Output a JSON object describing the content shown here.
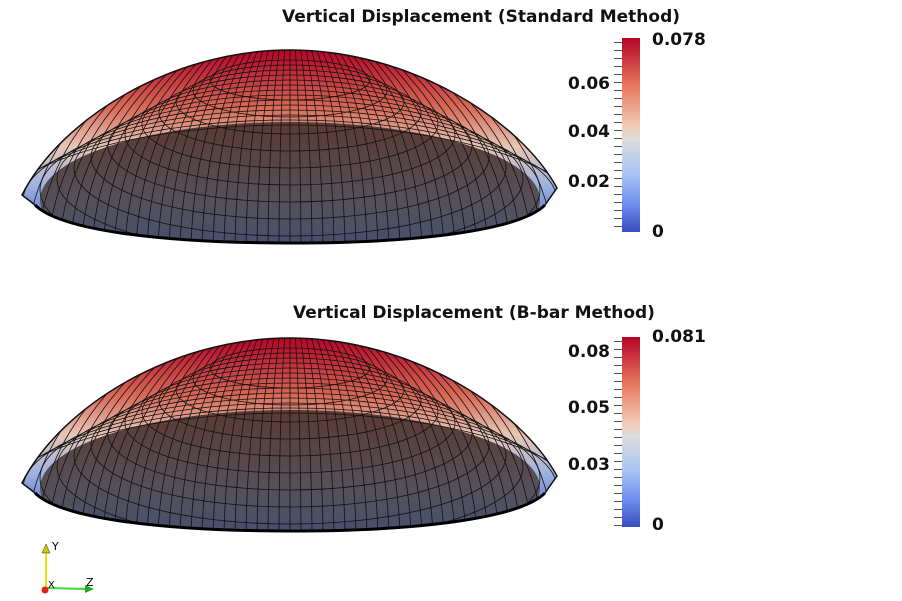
{
  "plots": [
    {
      "title": "Vertical Displacement (Standard Method)",
      "colorbar": {
        "max_label": "0.078",
        "min_label": "0",
        "ticks": [
          "0.06",
          "0.04",
          "0.02"
        ],
        "range": [
          0,
          0.078
        ]
      }
    },
    {
      "title": "Vertical Displacement (B-bar Method)",
      "colorbar": {
        "max_label": "0.081",
        "min_label": "0",
        "ticks": [
          "0.08",
          "0.05",
          "0.03"
        ],
        "range": [
          0,
          0.081
        ]
      }
    }
  ],
  "axes": {
    "y": "Y",
    "z": "Z",
    "x": "X"
  },
  "colormap": {
    "high": "#b40426",
    "mid": "#dddddd",
    "low": "#3b4cc0"
  }
}
